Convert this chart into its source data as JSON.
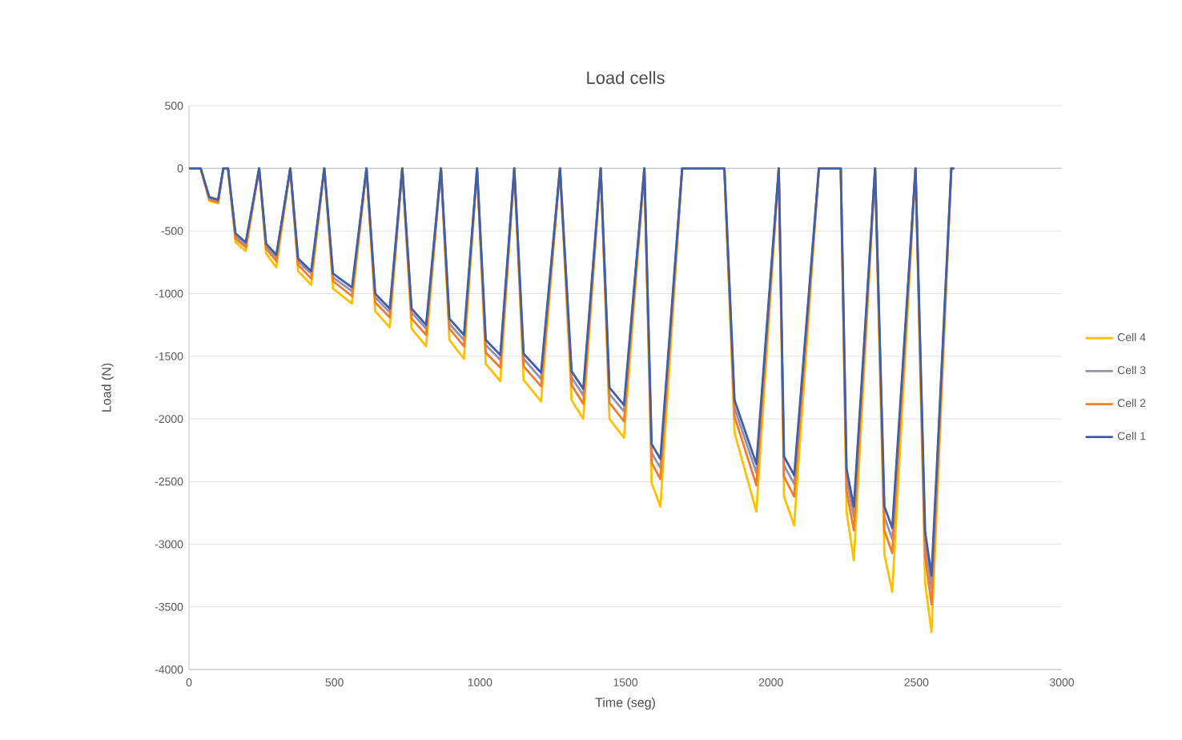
{
  "chart_data": {
    "type": "line",
    "title": "Load cells",
    "xlabel": "Time (seg)",
    "ylabel": "Load (N)",
    "xlim": [
      0,
      3000
    ],
    "xticks": [
      0,
      500,
      1000,
      1500,
      2000,
      2500,
      3000
    ],
    "ylim": [
      -4000,
      500
    ],
    "yticks": [
      -4000,
      -3500,
      -3000,
      -2500,
      -2000,
      -1500,
      -1000,
      -500,
      0,
      500
    ],
    "grid": "y",
    "legend": "right",
    "marker": "none",
    "line_style": "solid",
    "x": [
      0,
      40,
      70,
      100,
      118,
      134,
      160,
      195,
      241,
      265,
      300,
      348,
      375,
      420,
      465,
      495,
      560,
      610,
      640,
      690,
      733,
      765,
      815,
      866,
      895,
      945,
      990,
      1020,
      1070,
      1118,
      1150,
      1210,
      1275,
      1315,
      1355,
      1415,
      1445,
      1495,
      1565,
      1590,
      1620,
      1695,
      1840,
      1875,
      1950,
      2027,
      2045,
      2080,
      2165,
      2240,
      2260,
      2285,
      2358,
      2390,
      2417,
      2497,
      2530,
      2552,
      2620,
      2630
    ],
    "series": [
      {
        "name": "Cell 4",
        "color": "#ffc000",
        "values": [
          0,
          0,
          -260,
          -280,
          0,
          0,
          -590,
          -660,
          0,
          -680,
          -790,
          0,
          -820,
          -930,
          0,
          -960,
          -1080,
          0,
          -1140,
          -1270,
          0,
          -1280,
          -1420,
          0,
          -1370,
          -1520,
          0,
          -1560,
          -1700,
          0,
          -1690,
          -1860,
          0,
          -1850,
          -2000,
          0,
          -2000,
          -2150,
          0,
          -2510,
          -2700,
          0,
          0,
          -2110,
          -2740,
          0,
          -2620,
          -2850,
          0,
          0,
          -2740,
          -3130,
          0,
          -3080,
          -3380,
          0,
          -3310,
          -3700,
          0,
          0
        ]
      },
      {
        "name": "Cell 3",
        "color": "#9590b8",
        "values": [
          0,
          0,
          -240,
          -260,
          0,
          0,
          -540,
          -610,
          0,
          -620,
          -710,
          0,
          -740,
          -840,
          0,
          -870,
          -980,
          0,
          -1030,
          -1150,
          0,
          -1150,
          -1280,
          0,
          -1240,
          -1370,
          0,
          -1410,
          -1530,
          0,
          -1520,
          -1680,
          0,
          -1670,
          -1810,
          0,
          -1800,
          -1940,
          0,
          -2270,
          -2390,
          0,
          0,
          -1910,
          -2430,
          0,
          -2370,
          -2520,
          0,
          0,
          -2470,
          -2780,
          0,
          -2780,
          -2960,
          0,
          -2990,
          -3350,
          0,
          0
        ]
      },
      {
        "name": "Cell 2",
        "color": "#ed7d31",
        "values": [
          0,
          0,
          -250,
          -270,
          0,
          0,
          -560,
          -630,
          0,
          -640,
          -740,
          0,
          -770,
          -880,
          0,
          -900,
          -1020,
          0,
          -1070,
          -1190,
          0,
          -1200,
          -1330,
          0,
          -1280,
          -1420,
          0,
          -1470,
          -1590,
          0,
          -1580,
          -1740,
          0,
          -1730,
          -1880,
          0,
          -1870,
          -2020,
          0,
          -2350,
          -2480,
          0,
          0,
          -1980,
          -2530,
          0,
          -2460,
          -2620,
          0,
          0,
          -2570,
          -2890,
          0,
          -2890,
          -3070,
          0,
          -3100,
          -3480,
          0,
          0
        ]
      },
      {
        "name": "Cell 1",
        "color": "#3f5fa8",
        "values": [
          0,
          0,
          -230,
          -250,
          0,
          0,
          -520,
          -590,
          0,
          -600,
          -690,
          0,
          -720,
          -820,
          0,
          -840,
          -950,
          0,
          -1000,
          -1120,
          0,
          -1120,
          -1250,
          0,
          -1200,
          -1330,
          0,
          -1370,
          -1490,
          0,
          -1480,
          -1630,
          0,
          -1620,
          -1760,
          0,
          -1750,
          -1890,
          0,
          -2200,
          -2320,
          0,
          0,
          -1850,
          -2360,
          0,
          -2300,
          -2450,
          0,
          0,
          -2400,
          -2700,
          0,
          -2700,
          -2870,
          0,
          -2900,
          -3250,
          0,
          0
        ]
      }
    ]
  }
}
